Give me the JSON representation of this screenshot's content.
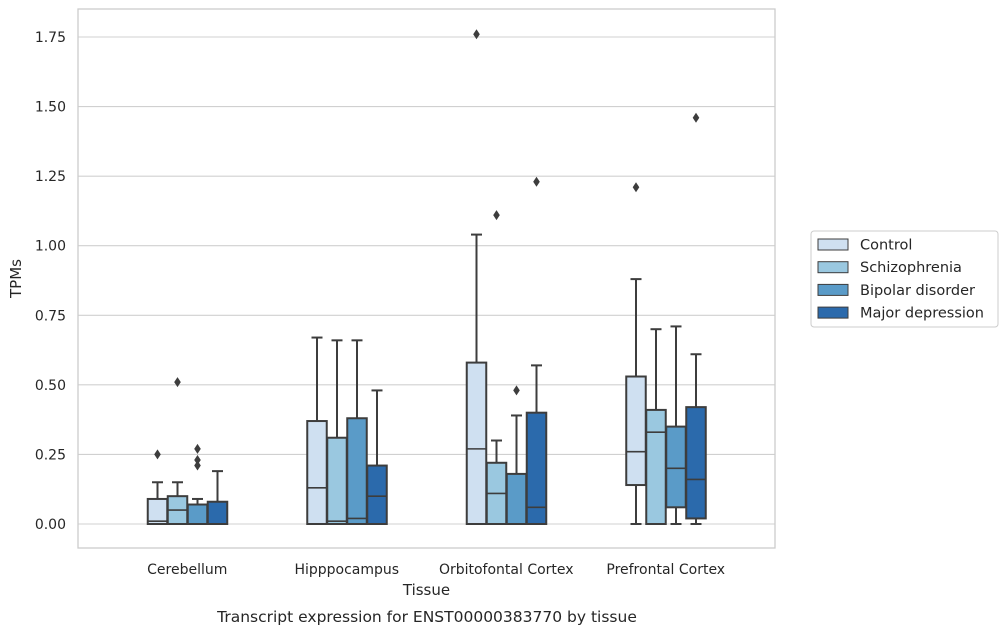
{
  "caption": "Transcript expression for ENST00000383770 by tissue",
  "chart_data": {
    "type": "box",
    "xlabel": "Tissue",
    "ylabel": "TPMs",
    "ylim": [
      -0.085,
      1.85
    ],
    "yticks": [
      0.0,
      0.25,
      0.5,
      0.75,
      1.0,
      1.25,
      1.5,
      1.75
    ],
    "ytick_labels": [
      "0.00",
      "0.25",
      "0.50",
      "0.75",
      "1.00",
      "1.25",
      "1.50",
      "1.75"
    ],
    "grid": "horizontal",
    "legend_position": "right",
    "categories": [
      "Cerebellum",
      "Hipppocampus",
      "Orbitofontal Cortex",
      "Prefrontal Cortex"
    ],
    "series": [
      {
        "name": "Control",
        "color": "#cfe0f1",
        "boxes": [
          {
            "whislo": 0.0,
            "q1": 0.0,
            "med": 0.01,
            "q3": 0.09,
            "whishi": 0.15,
            "fliers": [
              0.25
            ]
          },
          {
            "whislo": 0.0,
            "q1": 0.0,
            "med": 0.13,
            "q3": 0.37,
            "whishi": 0.67,
            "fliers": []
          },
          {
            "whislo": 0.0,
            "q1": 0.0,
            "med": 0.27,
            "q3": 0.58,
            "whishi": 1.04,
            "fliers": [
              1.76
            ]
          },
          {
            "whislo": 0.0,
            "q1": 0.14,
            "med": 0.26,
            "q3": 0.53,
            "whishi": 0.88,
            "fliers": [
              1.21
            ]
          }
        ]
      },
      {
        "name": "Schizophrenia",
        "color": "#9ac8e0",
        "boxes": [
          {
            "whislo": 0.0,
            "q1": 0.0,
            "med": 0.05,
            "q3": 0.1,
            "whishi": 0.15,
            "fliers": [
              0.51
            ]
          },
          {
            "whislo": 0.0,
            "q1": 0.0,
            "med": 0.01,
            "q3": 0.31,
            "whishi": 0.66,
            "fliers": []
          },
          {
            "whislo": 0.0,
            "q1": 0.0,
            "med": 0.11,
            "q3": 0.22,
            "whishi": 0.3,
            "fliers": [
              1.11
            ]
          },
          {
            "whislo": 0.0,
            "q1": 0.0,
            "med": 0.33,
            "q3": 0.41,
            "whishi": 0.7,
            "fliers": []
          }
        ]
      },
      {
        "name": "Bipolar disorder",
        "color": "#5a9bc8",
        "boxes": [
          {
            "whislo": 0.0,
            "q1": 0.0,
            "med": 0.0,
            "q3": 0.07,
            "whishi": 0.09,
            "fliers": [
              0.21,
              0.23,
              0.27
            ]
          },
          {
            "whislo": 0.0,
            "q1": 0.0,
            "med": 0.02,
            "q3": 0.38,
            "whishi": 0.66,
            "fliers": []
          },
          {
            "whislo": 0.0,
            "q1": 0.0,
            "med": 0.0,
            "q3": 0.18,
            "whishi": 0.39,
            "fliers": [
              0.48
            ]
          },
          {
            "whislo": 0.0,
            "q1": 0.06,
            "med": 0.2,
            "q3": 0.35,
            "whishi": 0.71,
            "fliers": []
          }
        ]
      },
      {
        "name": "Major depression",
        "color": "#2b6aac",
        "boxes": [
          {
            "whislo": 0.0,
            "q1": 0.0,
            "med": 0.0,
            "q3": 0.08,
            "whishi": 0.19,
            "fliers": []
          },
          {
            "whislo": 0.0,
            "q1": 0.0,
            "med": 0.1,
            "q3": 0.21,
            "whishi": 0.48,
            "fliers": []
          },
          {
            "whislo": 0.0,
            "q1": 0.0,
            "med": 0.06,
            "q3": 0.4,
            "whishi": 0.57,
            "fliers": [
              1.23
            ]
          },
          {
            "whislo": 0.0,
            "q1": 0.02,
            "med": 0.16,
            "q3": 0.42,
            "whishi": 0.61,
            "fliers": [
              1.46
            ]
          }
        ]
      }
    ]
  }
}
